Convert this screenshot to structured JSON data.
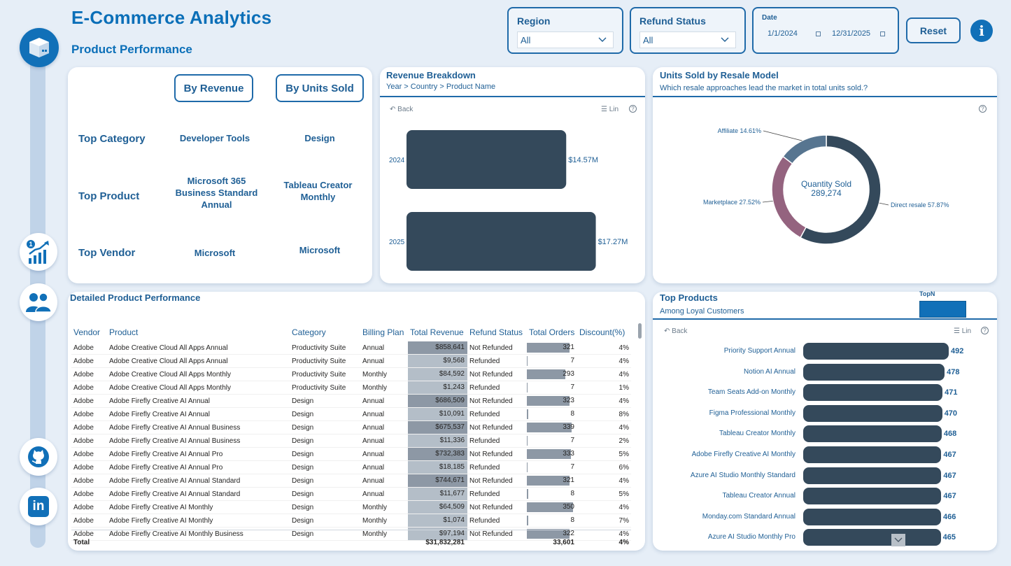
{
  "header": {
    "title": "E-Commerce Analytics",
    "subtitle": "Product Performance"
  },
  "filters": {
    "region": {
      "label": "Region",
      "value": "All"
    },
    "refund_status": {
      "label": "Refund Status",
      "value": "All"
    },
    "date": {
      "label": "Date",
      "start": "1/1/2024",
      "end": "12/31/2025"
    },
    "reset_label": "Reset",
    "info_icon": "i"
  },
  "nav": {
    "icons": [
      "package-icon",
      "chart-growth-icon",
      "users-icon",
      "github-icon",
      "linkedin-icon"
    ],
    "linkedin_text": "in"
  },
  "kpis": {
    "buttons": {
      "by_revenue": "By Revenue",
      "by_units": "By Units Sold"
    },
    "rows": [
      {
        "label": "Top Category",
        "by_revenue": "Developer Tools",
        "by_units": "Design"
      },
      {
        "label": "Top Product",
        "by_revenue": "Microsoft 365 Business Standard Annual",
        "by_units": "Tableau Creator Monthly"
      },
      {
        "label": "Top Vendor",
        "by_revenue": "Microsoft",
        "by_units": "Microsoft"
      }
    ]
  },
  "revenue_breakdown": {
    "title": "Revenue Breakdown",
    "subtitle": "Year > Country > Product Name",
    "back_label": "Back",
    "lin_label": "Lin",
    "chart_data": {
      "type": "bar",
      "orientation": "horizontal",
      "categories": [
        "2024",
        "2025"
      ],
      "values": [
        14.57,
        17.27
      ],
      "labels": [
        "$14.57M",
        "$17.27M"
      ],
      "color": "#34495b"
    }
  },
  "units_by_model": {
    "title": "Units Sold by Resale Model",
    "subtitle": "Which resale approaches lead the market in total units sold.?",
    "center_label": "Quantity Sold",
    "center_value": "289,274",
    "chart_data": {
      "type": "pie",
      "donut": true,
      "slices": [
        {
          "name": "Direct resale",
          "value": 57.87,
          "label": "Direct resale 57.87%",
          "color": "#34495b"
        },
        {
          "name": "Marketplace",
          "value": 27.52,
          "label": "Marketplace 27.52%",
          "color": "#94637f"
        },
        {
          "name": "Affiliate",
          "value": 14.61,
          "label": "Affiliate 14.61%",
          "color": "#577590"
        }
      ]
    }
  },
  "detail_table": {
    "title": "Detailed Product Performance",
    "columns": [
      "Vendor",
      "Product",
      "Category",
      "Billing Plan",
      "Total Revenue",
      "Refund Status",
      "Total Orders",
      "Discount(%)"
    ],
    "rows": [
      [
        "Adobe",
        "Adobe Creative Cloud All Apps Annual",
        "Productivity Suite",
        "Annual",
        "$858,641",
        "Not Refunded",
        "321",
        "4%"
      ],
      [
        "Adobe",
        "Adobe Creative Cloud All Apps Annual",
        "Productivity Suite",
        "Annual",
        "$9,568",
        "Refunded",
        "7",
        "4%"
      ],
      [
        "Adobe",
        "Adobe Creative Cloud All Apps Monthly",
        "Productivity Suite",
        "Monthly",
        "$84,592",
        "Not Refunded",
        "293",
        "4%"
      ],
      [
        "Adobe",
        "Adobe Creative Cloud All Apps Monthly",
        "Productivity Suite",
        "Monthly",
        "$1,243",
        "Refunded",
        "7",
        "1%"
      ],
      [
        "Adobe",
        "Adobe Firefly Creative AI Annual",
        "Design",
        "Annual",
        "$686,509",
        "Not Refunded",
        "323",
        "4%"
      ],
      [
        "Adobe",
        "Adobe Firefly Creative AI Annual",
        "Design",
        "Annual",
        "$10,091",
        "Refunded",
        "8",
        "8%"
      ],
      [
        "Adobe",
        "Adobe Firefly Creative AI Annual Business",
        "Design",
        "Annual",
        "$675,537",
        "Not Refunded",
        "339",
        "4%"
      ],
      [
        "Adobe",
        "Adobe Firefly Creative AI Annual Business",
        "Design",
        "Annual",
        "$11,336",
        "Refunded",
        "7",
        "2%"
      ],
      [
        "Adobe",
        "Adobe Firefly Creative AI Annual Pro",
        "Design",
        "Annual",
        "$732,383",
        "Not Refunded",
        "333",
        "5%"
      ],
      [
        "Adobe",
        "Adobe Firefly Creative AI Annual Pro",
        "Design",
        "Annual",
        "$18,185",
        "Refunded",
        "7",
        "6%"
      ],
      [
        "Adobe",
        "Adobe Firefly Creative AI Annual Standard",
        "Design",
        "Annual",
        "$744,671",
        "Not Refunded",
        "321",
        "4%"
      ],
      [
        "Adobe",
        "Adobe Firefly Creative AI Annual Standard",
        "Design",
        "Annual",
        "$11,677",
        "Refunded",
        "8",
        "5%"
      ],
      [
        "Adobe",
        "Adobe Firefly Creative AI Monthly",
        "Design",
        "Monthly",
        "$64,509",
        "Not Refunded",
        "350",
        "4%"
      ],
      [
        "Adobe",
        "Adobe Firefly Creative AI Monthly",
        "Design",
        "Monthly",
        "$1,074",
        "Refunded",
        "8",
        "7%"
      ],
      [
        "Adobe",
        "Adobe Firefly Creative AI Monthly Business",
        "Design",
        "Monthly",
        "$97,194",
        "Not Refunded",
        "322",
        "4%"
      ]
    ],
    "total": {
      "label": "Total",
      "revenue": "$31,832,281",
      "orders": "33,601",
      "discount": "4%"
    }
  },
  "top_products": {
    "title": "Top Products",
    "subtitle": "Among Loyal Customers",
    "topn_label": "TopN",
    "back_label": "Back",
    "lin_label": "Lin",
    "chart_data": {
      "type": "bar",
      "orientation": "horizontal",
      "categories": [
        "Priority Support Annual",
        "Notion AI Annual",
        "Team Seats Add-on Monthly",
        "Figma Professional Monthly",
        "Tableau Creator Monthly",
        "Adobe Firefly Creative AI Monthly",
        "Azure AI Studio Monthly Standard",
        "Tableau Creator Annual",
        "Monday.com Standard Annual",
        "Azure AI Studio Monthly Pro"
      ],
      "values": [
        492,
        478,
        471,
        470,
        468,
        467,
        467,
        467,
        466,
        465
      ],
      "color": "#34495b"
    }
  },
  "colors": {
    "accent": "#1170b8",
    "bar": "#34495b",
    "revenue_bar": "#8d98a5"
  }
}
